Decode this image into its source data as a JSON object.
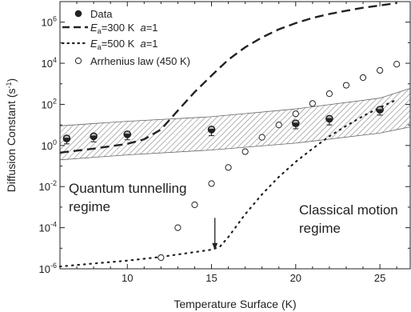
{
  "chart_data": {
    "type": "scatter",
    "xlabel": "Temperature Surface (K)",
    "ylabel_prefix": "Diffusion Constant (s",
    "ylabel_sup": "-1",
    "ylabel_suffix": ")",
    "xlim": [
      6,
      26.8
    ],
    "ylim_log10": [
      -6,
      7
    ],
    "y_scale": "log",
    "x_ticks": [
      {
        "value": 10,
        "label": "10"
      },
      {
        "value": 15,
        "label": "15"
      },
      {
        "value": 20,
        "label": "20"
      },
      {
        "value": 25,
        "label": "25"
      }
    ],
    "y_ticks": [
      {
        "exp": -6,
        "base": "10",
        "sup": "-6"
      },
      {
        "exp": -4,
        "base": "10",
        "sup": "-4"
      },
      {
        "exp": -2,
        "base": "10",
        "sup": "-2"
      },
      {
        "exp": 0,
        "base": "10",
        "sup": "0"
      },
      {
        "exp": 2,
        "base": "10",
        "sup": "2"
      },
      {
        "exp": 4,
        "base": "10",
        "sup": "4"
      },
      {
        "exp": 6,
        "base": "10",
        "sup": "6"
      }
    ],
    "legend": {
      "placement": "top-left",
      "entries": [
        {
          "key": "data",
          "marker": "filled-circle",
          "text": "Data"
        },
        {
          "key": "ea300",
          "marker": "dash",
          "e_sym": "E",
          "e_sub": "a",
          "text_main": "=300 K  ",
          "a_sym": "a",
          "a_text": "=1"
        },
        {
          "key": "ea500",
          "marker": "dot",
          "e_sym": "E",
          "e_sub": "a",
          "text_main": "=500 K  ",
          "a_sym": "a",
          "a_text": "=1"
        },
        {
          "key": "arrhenius",
          "marker": "open-circle",
          "text": "Arrhenius law (450 K)"
        }
      ]
    },
    "series": [
      {
        "name": "Data",
        "kind": "points-with-errorbars",
        "points": [
          {
            "x": 6.4,
            "y": 2.2,
            "y_lo": 1.2
          },
          {
            "x": 8.0,
            "y": 2.8,
            "y_lo": 1.5
          },
          {
            "x": 10.0,
            "y": 3.5,
            "y_lo": 1.9
          },
          {
            "x": 15.0,
            "y": 6.0,
            "y_lo": 3.0
          },
          {
            "x": 20.0,
            "y": 12.0,
            "y_lo": 6.5
          },
          {
            "x": 22.0,
            "y": 20.0,
            "y_lo": 10.0
          },
          {
            "x": 25.0,
            "y": 55.0,
            "y_lo": 30.0
          }
        ]
      },
      {
        "name": "Ea=300 K a=1",
        "kind": "dashed-line",
        "points": [
          {
            "x": 6.0,
            "y": 0.45
          },
          {
            "x": 8.0,
            "y": 0.7
          },
          {
            "x": 10.0,
            "y": 1.2
          },
          {
            "x": 11.0,
            "y": 2.0
          },
          {
            "x": 12.0,
            "y": 6.0
          },
          {
            "x": 13.0,
            "y": 50
          },
          {
            "x": 14.0,
            "y": 400
          },
          {
            "x": 15.0,
            "y": 2500
          },
          {
            "x": 16.0,
            "y": 15000
          },
          {
            "x": 17.0,
            "y": 60000
          },
          {
            "x": 18.0,
            "y": 180000
          },
          {
            "x": 19.0,
            "y": 450000
          },
          {
            "x": 20.0,
            "y": 900000
          },
          {
            "x": 21.0,
            "y": 1600000
          },
          {
            "x": 22.0,
            "y": 2500000
          },
          {
            "x": 23.0,
            "y": 3600000
          },
          {
            "x": 24.0,
            "y": 5000000
          },
          {
            "x": 25.0,
            "y": 6500000
          },
          {
            "x": 26.0,
            "y": 8500000
          }
        ]
      },
      {
        "name": "Ea=500 K a=1",
        "kind": "dotted-line",
        "points": [
          {
            "x": 6.0,
            "y": 1.3e-06
          },
          {
            "x": 8.0,
            "y": 1.8e-06
          },
          {
            "x": 10.0,
            "y": 2.5e-06
          },
          {
            "x": 12.0,
            "y": 3.8e-06
          },
          {
            "x": 14.0,
            "y": 6.5e-06
          },
          {
            "x": 15.0,
            "y": 8.5e-06
          },
          {
            "x": 15.5,
            "y": 1.2e-05
          },
          {
            "x": 16.0,
            "y": 3.5e-05
          },
          {
            "x": 17.0,
            "y": 0.00045
          },
          {
            "x": 18.0,
            "y": 0.0042
          },
          {
            "x": 19.0,
            "y": 0.03
          },
          {
            "x": 20.0,
            "y": 0.16
          },
          {
            "x": 21.0,
            "y": 0.7
          },
          {
            "x": 22.0,
            "y": 2.8
          },
          {
            "x": 23.0,
            "y": 9.0
          },
          {
            "x": 24.0,
            "y": 27
          },
          {
            "x": 25.0,
            "y": 70
          },
          {
            "x": 26.0,
            "y": 170
          }
        ]
      },
      {
        "name": "Arrhenius law (450 K)",
        "kind": "open-circles",
        "points": [
          {
            "x": 12.0,
            "y": 3.5e-06
          },
          {
            "x": 13.0,
            "y": 0.0001
          },
          {
            "x": 14.0,
            "y": 0.0013
          },
          {
            "x": 15.0,
            "y": 0.014
          },
          {
            "x": 16.0,
            "y": 0.085
          },
          {
            "x": 17.0,
            "y": 0.5
          },
          {
            "x": 18.0,
            "y": 2.5
          },
          {
            "x": 19.0,
            "y": 10
          },
          {
            "x": 20.0,
            "y": 35
          },
          {
            "x": 21.0,
            "y": 110
          },
          {
            "x": 22.0,
            "y": 330
          },
          {
            "x": 23.0,
            "y": 850
          },
          {
            "x": 24.0,
            "y": 2000
          },
          {
            "x": 25.0,
            "y": 4500
          },
          {
            "x": 26.0,
            "y": 9000
          }
        ]
      }
    ],
    "band": {
      "name": "hatched-band",
      "upper": [
        {
          "x": 6.0,
          "y": 9
        },
        {
          "x": 10.0,
          "y": 15
        },
        {
          "x": 15.0,
          "y": 25
        },
        {
          "x": 20.0,
          "y": 60
        },
        {
          "x": 25.0,
          "y": 200
        },
        {
          "x": 26.8,
          "y": 600
        }
      ],
      "lower": [
        {
          "x": 6.0,
          "y": 0.2
        },
        {
          "x": 10.0,
          "y": 0.35
        },
        {
          "x": 15.0,
          "y": 0.6
        },
        {
          "x": 20.0,
          "y": 1.3
        },
        {
          "x": 25.0,
          "y": 4.0
        },
        {
          "x": 26.8,
          "y": 8.0
        }
      ]
    },
    "annotations": {
      "quantum": {
        "line1": "Quantum tunnelling",
        "line2": "regime"
      },
      "classical": {
        "line1": "Classical motion",
        "line2": "regime"
      },
      "arrow": {
        "x": 15.2,
        "y_from": 0.0003,
        "y_to": 8e-06
      }
    }
  }
}
